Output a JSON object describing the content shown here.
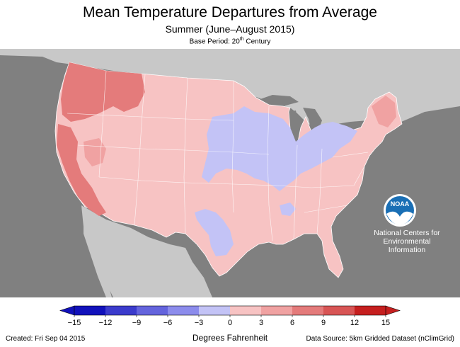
{
  "title": "Mean Temperature Departures from Average",
  "subtitle": "Summer (June–August 2015)",
  "base_period": {
    "prefix": "Base Period: 20",
    "sup": "th",
    "suffix": " Century"
  },
  "legend": {
    "units": "Degrees Fahrenheit",
    "ticks": [
      "−15",
      "−12",
      "−9",
      "−6",
      "−3",
      "0",
      "3",
      "6",
      "9",
      "12",
      "15"
    ],
    "colors": [
      "#1111bb",
      "#3b3bcc",
      "#6464dd",
      "#8c8cec",
      "#c3c3f6",
      "#f7c3c3",
      "#f0a2a2",
      "#e47b7b",
      "#d85555",
      "#c51f1f"
    ]
  },
  "logo": {
    "label": "NOAA",
    "name_lines": [
      "National Centers for",
      "Environmental",
      "Information"
    ]
  },
  "footer": {
    "created": "Created: Fri Sep 04 2015",
    "source": "Data Source: 5km Gridded Dataset (nClimGrid)"
  },
  "colors": {
    "ocean": "#808080",
    "land_foreign": "#c8c8c8",
    "above_slight": "#f7c3c3",
    "below_slight": "#c3c3f6",
    "above_moderate": "#e47b7b",
    "noaa_blue": "#1a6fb5"
  }
}
